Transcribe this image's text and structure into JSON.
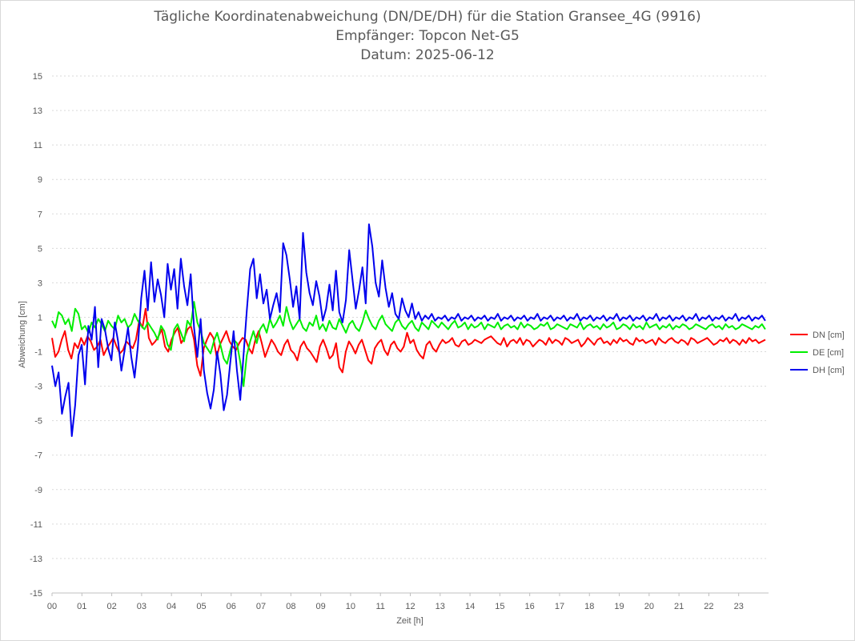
{
  "title_lines": [
    "Tägliche Koordinatenabweichung (DN/DE/DH) für die Station Gransee_4G (9916)",
    "Empfänger: Topcon Net-G5",
    "Datum: 2025-06-12"
  ],
  "chart_data": {
    "type": "line",
    "xlabel": "Zeit [h]",
    "ylabel": "Abweichung [cm]",
    "xlim": [
      0,
      24
    ],
    "ylim": [
      -15,
      15
    ],
    "x_ticks": [
      "00",
      "01",
      "02",
      "03",
      "04",
      "05",
      "06",
      "07",
      "08",
      "09",
      "10",
      "11",
      "12",
      "13",
      "14",
      "15",
      "16",
      "17",
      "18",
      "19",
      "20",
      "21",
      "22",
      "23"
    ],
    "y_ticks": [
      15,
      13,
      11,
      9,
      7,
      5,
      3,
      1,
      -1,
      -3,
      -5,
      -7,
      -9,
      -11,
      -13,
      -15
    ],
    "grid": "horizontal-dotted",
    "legend_position": "right",
    "x_step_hours": 0.5,
    "series": [
      {
        "name": "DN [cm]",
        "color": "#ff0000",
        "values": [
          -0.2,
          -1.3,
          -1.0,
          -0.3,
          0.2,
          -0.9,
          -1.4,
          -0.5,
          -0.8,
          -0.2,
          -0.6,
          -0.1,
          -0.4,
          -0.9,
          -0.7,
          -0.3,
          -1.2,
          -0.8,
          -0.5,
          -0.2,
          -0.7,
          -1.1,
          -0.9,
          -0.4,
          -0.6,
          -0.8,
          -0.3,
          0.8,
          0.4,
          1.5,
          -0.2,
          -0.6,
          -0.4,
          -0.1,
          0.3,
          -0.7,
          -1.0,
          -0.3,
          0.1,
          0.4,
          -0.5,
          -0.2,
          0.3,
          0.5,
          -0.3,
          -1.8,
          -2.4,
          -0.8,
          -0.3,
          0.1,
          -0.2,
          -1.3,
          -0.6,
          -0.2,
          0.2,
          -0.4,
          -0.7,
          -0.9,
          -0.5,
          -0.2,
          -0.3,
          -0.8,
          -1.1,
          -0.3,
          0.2,
          -0.5,
          -1.3,
          -0.8,
          -0.3,
          -0.6,
          -1.0,
          -1.2,
          -0.6,
          -0.3,
          -0.9,
          -1.1,
          -1.5,
          -0.7,
          -0.4,
          -0.8,
          -1.0,
          -1.3,
          -1.6,
          -0.7,
          -0.3,
          -0.8,
          -1.4,
          -1.2,
          -0.5,
          -1.9,
          -2.2,
          -1.0,
          -0.4,
          -0.7,
          -1.1,
          -0.6,
          -0.3,
          -0.9,
          -1.5,
          -1.7,
          -0.8,
          -0.5,
          -0.3,
          -0.9,
          -1.2,
          -0.6,
          -0.4,
          -0.8,
          -1.0,
          -0.7,
          0.1,
          -0.5,
          -0.3,
          -0.9,
          -1.2,
          -1.4,
          -0.6,
          -0.4,
          -0.8,
          -1.0,
          -0.6,
          -0.3,
          -0.5,
          -0.4,
          -0.2,
          -0.6,
          -0.7,
          -0.4,
          -0.3,
          -0.6,
          -0.5,
          -0.3,
          -0.4,
          -0.5,
          -0.3,
          -0.2,
          -0.1,
          -0.3,
          -0.5,
          -0.6,
          -0.2,
          -0.7,
          -0.4,
          -0.3,
          -0.5,
          -0.2,
          -0.6,
          -0.3,
          -0.4,
          -0.7,
          -0.5,
          -0.3,
          -0.4,
          -0.6,
          -0.2,
          -0.5,
          -0.3,
          -0.4,
          -0.6,
          -0.2,
          -0.3,
          -0.5,
          -0.4,
          -0.3,
          -0.7,
          -0.5,
          -0.2,
          -0.4,
          -0.6,
          -0.3,
          -0.2,
          -0.5,
          -0.4,
          -0.6,
          -0.3,
          -0.5,
          -0.2,
          -0.4,
          -0.3,
          -0.5,
          -0.6,
          -0.2,
          -0.4,
          -0.3,
          -0.5,
          -0.4,
          -0.3,
          -0.6,
          -0.2,
          -0.4,
          -0.5,
          -0.3,
          -0.2,
          -0.4,
          -0.5,
          -0.3,
          -0.4,
          -0.6,
          -0.2,
          -0.3,
          -0.5,
          -0.4,
          -0.3,
          -0.2,
          -0.4,
          -0.6,
          -0.5,
          -0.3,
          -0.4,
          -0.2,
          -0.5,
          -0.3,
          -0.4,
          -0.6,
          -0.3,
          -0.5,
          -0.2,
          -0.4,
          -0.3,
          -0.5,
          -0.4,
          -0.3
        ]
      },
      {
        "name": "DE [cm]",
        "color": "#00ee00",
        "values": [
          0.8,
          0.4,
          1.3,
          1.1,
          0.6,
          0.9,
          0.2,
          1.5,
          1.2,
          0.3,
          0.5,
          0.1,
          0.7,
          0.4,
          0.9,
          0.6,
          0.2,
          0.8,
          0.5,
          0.3,
          1.1,
          0.7,
          0.9,
          0.4,
          0.6,
          1.2,
          0.8,
          0.5,
          0.3,
          0.7,
          0.4,
          0.1,
          -0.3,
          0.5,
          0.2,
          -0.6,
          -0.9,
          0.3,
          0.6,
          0.1,
          -0.4,
          0.8,
          0.5,
          1.9,
          0.7,
          0.2,
          -0.5,
          -0.8,
          -1.1,
          -0.4,
          0.1,
          -0.6,
          -1.4,
          -1.7,
          -0.9,
          -0.3,
          -0.5,
          -1.6,
          -3.0,
          -1.2,
          -0.4,
          0.2,
          -0.5,
          0.3,
          0.6,
          0.1,
          0.9,
          0.4,
          0.7,
          1.1,
          0.5,
          1.6,
          0.8,
          0.3,
          0.6,
          0.9,
          0.4,
          0.2,
          0.7,
          0.5,
          1.1,
          0.3,
          0.6,
          0.2,
          0.8,
          0.4,
          0.3,
          0.9,
          0.5,
          0.1,
          0.6,
          0.8,
          0.4,
          0.2,
          0.7,
          1.4,
          0.9,
          0.5,
          0.3,
          0.8,
          1.1,
          0.6,
          0.4,
          0.2,
          0.7,
          0.9,
          0.5,
          0.3,
          0.6,
          0.8,
          0.4,
          0.2,
          0.7,
          0.5,
          0.3,
          0.8,
          0.6,
          0.4,
          0.7,
          0.5,
          0.3,
          0.6,
          0.8,
          0.4,
          0.5,
          0.7,
          0.3,
          0.6,
          0.4,
          0.5,
          0.7,
          0.3,
          0.6,
          0.5,
          0.4,
          0.7,
          0.3,
          0.5,
          0.6,
          0.4,
          0.5,
          0.3,
          0.7,
          0.4,
          0.6,
          0.5,
          0.3,
          0.4,
          0.6,
          0.5,
          0.7,
          0.3,
          0.4,
          0.6,
          0.5,
          0.4,
          0.3,
          0.6,
          0.5,
          0.4,
          0.7,
          0.3,
          0.5,
          0.6,
          0.4,
          0.5,
          0.3,
          0.6,
          0.4,
          0.5,
          0.7,
          0.3,
          0.4,
          0.6,
          0.5,
          0.3,
          0.6,
          0.4,
          0.5,
          0.3,
          0.7,
          0.4,
          0.5,
          0.6,
          0.3,
          0.5,
          0.4,
          0.6,
          0.3,
          0.5,
          0.4,
          0.6,
          0.5,
          0.3,
          0.4,
          0.6,
          0.5,
          0.4,
          0.3,
          0.5,
          0.6,
          0.4,
          0.5,
          0.3,
          0.6,
          0.4,
          0.5,
          0.3,
          0.4,
          0.6,
          0.5,
          0.4,
          0.3,
          0.5,
          0.4,
          0.6,
          0.3
        ]
      },
      {
        "name": "DH [cm]",
        "color": "#0000ee",
        "values": [
          -1.8,
          -3.0,
          -2.2,
          -4.6,
          -3.6,
          -2.8,
          -5.9,
          -4.1,
          -1.2,
          -0.6,
          -2.9,
          0.5,
          -0.3,
          1.6,
          -1.9,
          0.9,
          0.3,
          -0.8,
          -1.5,
          0.7,
          -0.4,
          -2.1,
          -0.9,
          0.4,
          -1.3,
          -2.5,
          -0.7,
          2.1,
          3.7,
          1.4,
          4.2,
          1.9,
          3.2,
          2.3,
          1.0,
          4.1,
          2.6,
          3.8,
          1.5,
          4.4,
          2.8,
          1.7,
          3.5,
          0.4,
          -1.3,
          0.9,
          -2.1,
          -3.4,
          -4.3,
          -3.2,
          -1.0,
          -2.3,
          -4.4,
          -3.5,
          -1.6,
          0.2,
          -2.1,
          -3.8,
          -1.2,
          1.4,
          3.8,
          4.4,
          2.1,
          3.5,
          1.8,
          2.6,
          0.9,
          1.7,
          2.4,
          1.3,
          5.3,
          4.6,
          3.2,
          1.6,
          2.8,
          0.9,
          5.9,
          3.6,
          2.4,
          1.7,
          3.1,
          2.2,
          0.8,
          1.5,
          2.9,
          1.4,
          3.7,
          1.3,
          0.7,
          2.0,
          4.9,
          3.2,
          1.5,
          2.6,
          3.9,
          1.8,
          6.4,
          5.1,
          3.0,
          2.2,
          4.3,
          2.7,
          1.6,
          2.4,
          1.2,
          0.9,
          2.1,
          1.4,
          1.0,
          1.8,
          0.9,
          1.3,
          0.8,
          1.1,
          0.9,
          1.2,
          0.8,
          1.0,
          0.9,
          1.1,
          0.8,
          1.0,
          0.9,
          1.2,
          0.8,
          1.0,
          0.9,
          1.1,
          0.8,
          1.0,
          0.9,
          1.1,
          0.8,
          1.0,
          0.9,
          1.2,
          0.8,
          1.0,
          0.9,
          1.1,
          0.8,
          1.0,
          0.9,
          1.1,
          0.8,
          1.0,
          0.9,
          1.2,
          0.8,
          1.0,
          0.9,
          1.1,
          0.8,
          1.0,
          0.9,
          1.1,
          0.8,
          1.0,
          0.9,
          1.2,
          0.8,
          1.0,
          0.9,
          1.1,
          0.8,
          1.0,
          0.9,
          1.1,
          0.8,
          1.0,
          0.9,
          1.2,
          0.8,
          1.0,
          0.9,
          1.1,
          0.8,
          1.0,
          0.9,
          1.1,
          0.8,
          1.0,
          0.9,
          1.2,
          0.8,
          1.0,
          0.9,
          1.1,
          0.8,
          1.0,
          0.9,
          1.1,
          0.8,
          1.0,
          0.9,
          1.2,
          0.8,
          1.0,
          0.9,
          1.1,
          0.8,
          1.0,
          0.9,
          1.1,
          0.8,
          1.0,
          0.9,
          1.2,
          0.8,
          1.0,
          0.9,
          1.1,
          0.8,
          1.0,
          0.9,
          1.1,
          0.8
        ]
      }
    ]
  }
}
